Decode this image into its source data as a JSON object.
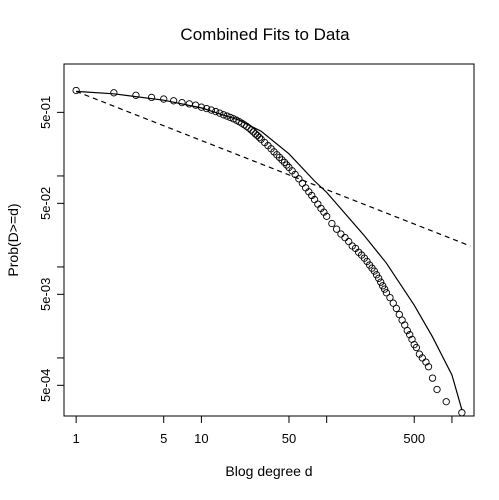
{
  "chart_data": {
    "type": "scatter",
    "title": "Combined Fits to Data",
    "xlabel": "Blog degree d",
    "ylabel": "Prob(D>=d)",
    "x_scale": "log",
    "y_scale": "log",
    "xlim": [
      0.8,
      1500
    ],
    "ylim": [
      0.00023,
      1.7
    ],
    "x_ticks": [
      {
        "value": 1,
        "label": "1"
      },
      {
        "value": 5,
        "label": "5"
      },
      {
        "value": 10,
        "label": "10"
      },
      {
        "value": 50,
        "label": "50"
      },
      {
        "value": 500,
        "label": "500"
      }
    ],
    "x_minor_ticks": [
      100,
      1000
    ],
    "y_ticks": [
      {
        "value": 0.5,
        "label": "5e-01"
      },
      {
        "value": 0.05,
        "label": "5e-02"
      },
      {
        "value": 0.005,
        "label": "5e-03"
      },
      {
        "value": 0.0005,
        "label": "5e-04"
      }
    ],
    "y_minor_ticks": [
      0.1,
      0.01,
      0.001
    ],
    "grid": false,
    "legend": "none",
    "series": [
      {
        "style": "points",
        "marker": "open-circle",
        "x": [
          1,
          2,
          3,
          4,
          5,
          6,
          7,
          8,
          9,
          10,
          11,
          12,
          13,
          14,
          15,
          16,
          17,
          18,
          19,
          20,
          21,
          22,
          23,
          24,
          25,
          26,
          27,
          28,
          29,
          30,
          32,
          34,
          36,
          38,
          40,
          42,
          44,
          46,
          48,
          50,
          53,
          56,
          60,
          64,
          68,
          72,
          76,
          80,
          85,
          90,
          95,
          100,
          110,
          120,
          130,
          140,
          150,
          160,
          170,
          180,
          190,
          200,
          210,
          220,
          230,
          240,
          250,
          260,
          270,
          280,
          290,
          300,
          320,
          340,
          360,
          380,
          400,
          420,
          440,
          460,
          480,
          500,
          520,
          550,
          580,
          620,
          650,
          700,
          760,
          900,
          1200
        ],
        "y": [
          0.87,
          0.82,
          0.77,
          0.73,
          0.7,
          0.67,
          0.64,
          0.62,
          0.6,
          0.57,
          0.55,
          0.53,
          0.51,
          0.49,
          0.47,
          0.455,
          0.44,
          0.425,
          0.41,
          0.395,
          0.38,
          0.365,
          0.35,
          0.335,
          0.32,
          0.305,
          0.29,
          0.278,
          0.265,
          0.253,
          0.233,
          0.215,
          0.199,
          0.184,
          0.171,
          0.16,
          0.15,
          0.141,
          0.132,
          0.124,
          0.114,
          0.104,
          0.093,
          0.083,
          0.074,
          0.067,
          0.061,
          0.055,
          0.049,
          0.044,
          0.04,
          0.036,
          0.03,
          0.026,
          0.023,
          0.021,
          0.019,
          0.017,
          0.016,
          0.0145,
          0.0135,
          0.0125,
          0.0115,
          0.0105,
          0.0097,
          0.009,
          0.0082,
          0.0075,
          0.0068,
          0.0062,
          0.0057,
          0.0052,
          0.0046,
          0.004,
          0.0035,
          0.003,
          0.0026,
          0.0023,
          0.002,
          0.0018,
          0.0016,
          0.0014,
          0.0013,
          0.0011,
          0.001,
          0.0009,
          0.0008,
          0.0006,
          0.00045,
          0.00033,
          0.00025
        ]
      },
      {
        "style": "dashed-line",
        "x": [
          1,
          1400
        ],
        "y": [
          0.85,
          0.017
        ]
      },
      {
        "style": "solid-line",
        "x": [
          1,
          2,
          5,
          10,
          20,
          30,
          50,
          80,
          100,
          200,
          300,
          500,
          700,
          1000,
          1200
        ],
        "y": [
          0.85,
          0.8,
          0.68,
          0.56,
          0.41,
          0.31,
          0.175,
          0.088,
          0.066,
          0.022,
          0.011,
          0.0038,
          0.0017,
          0.00065,
          0.00027
        ]
      }
    ]
  }
}
